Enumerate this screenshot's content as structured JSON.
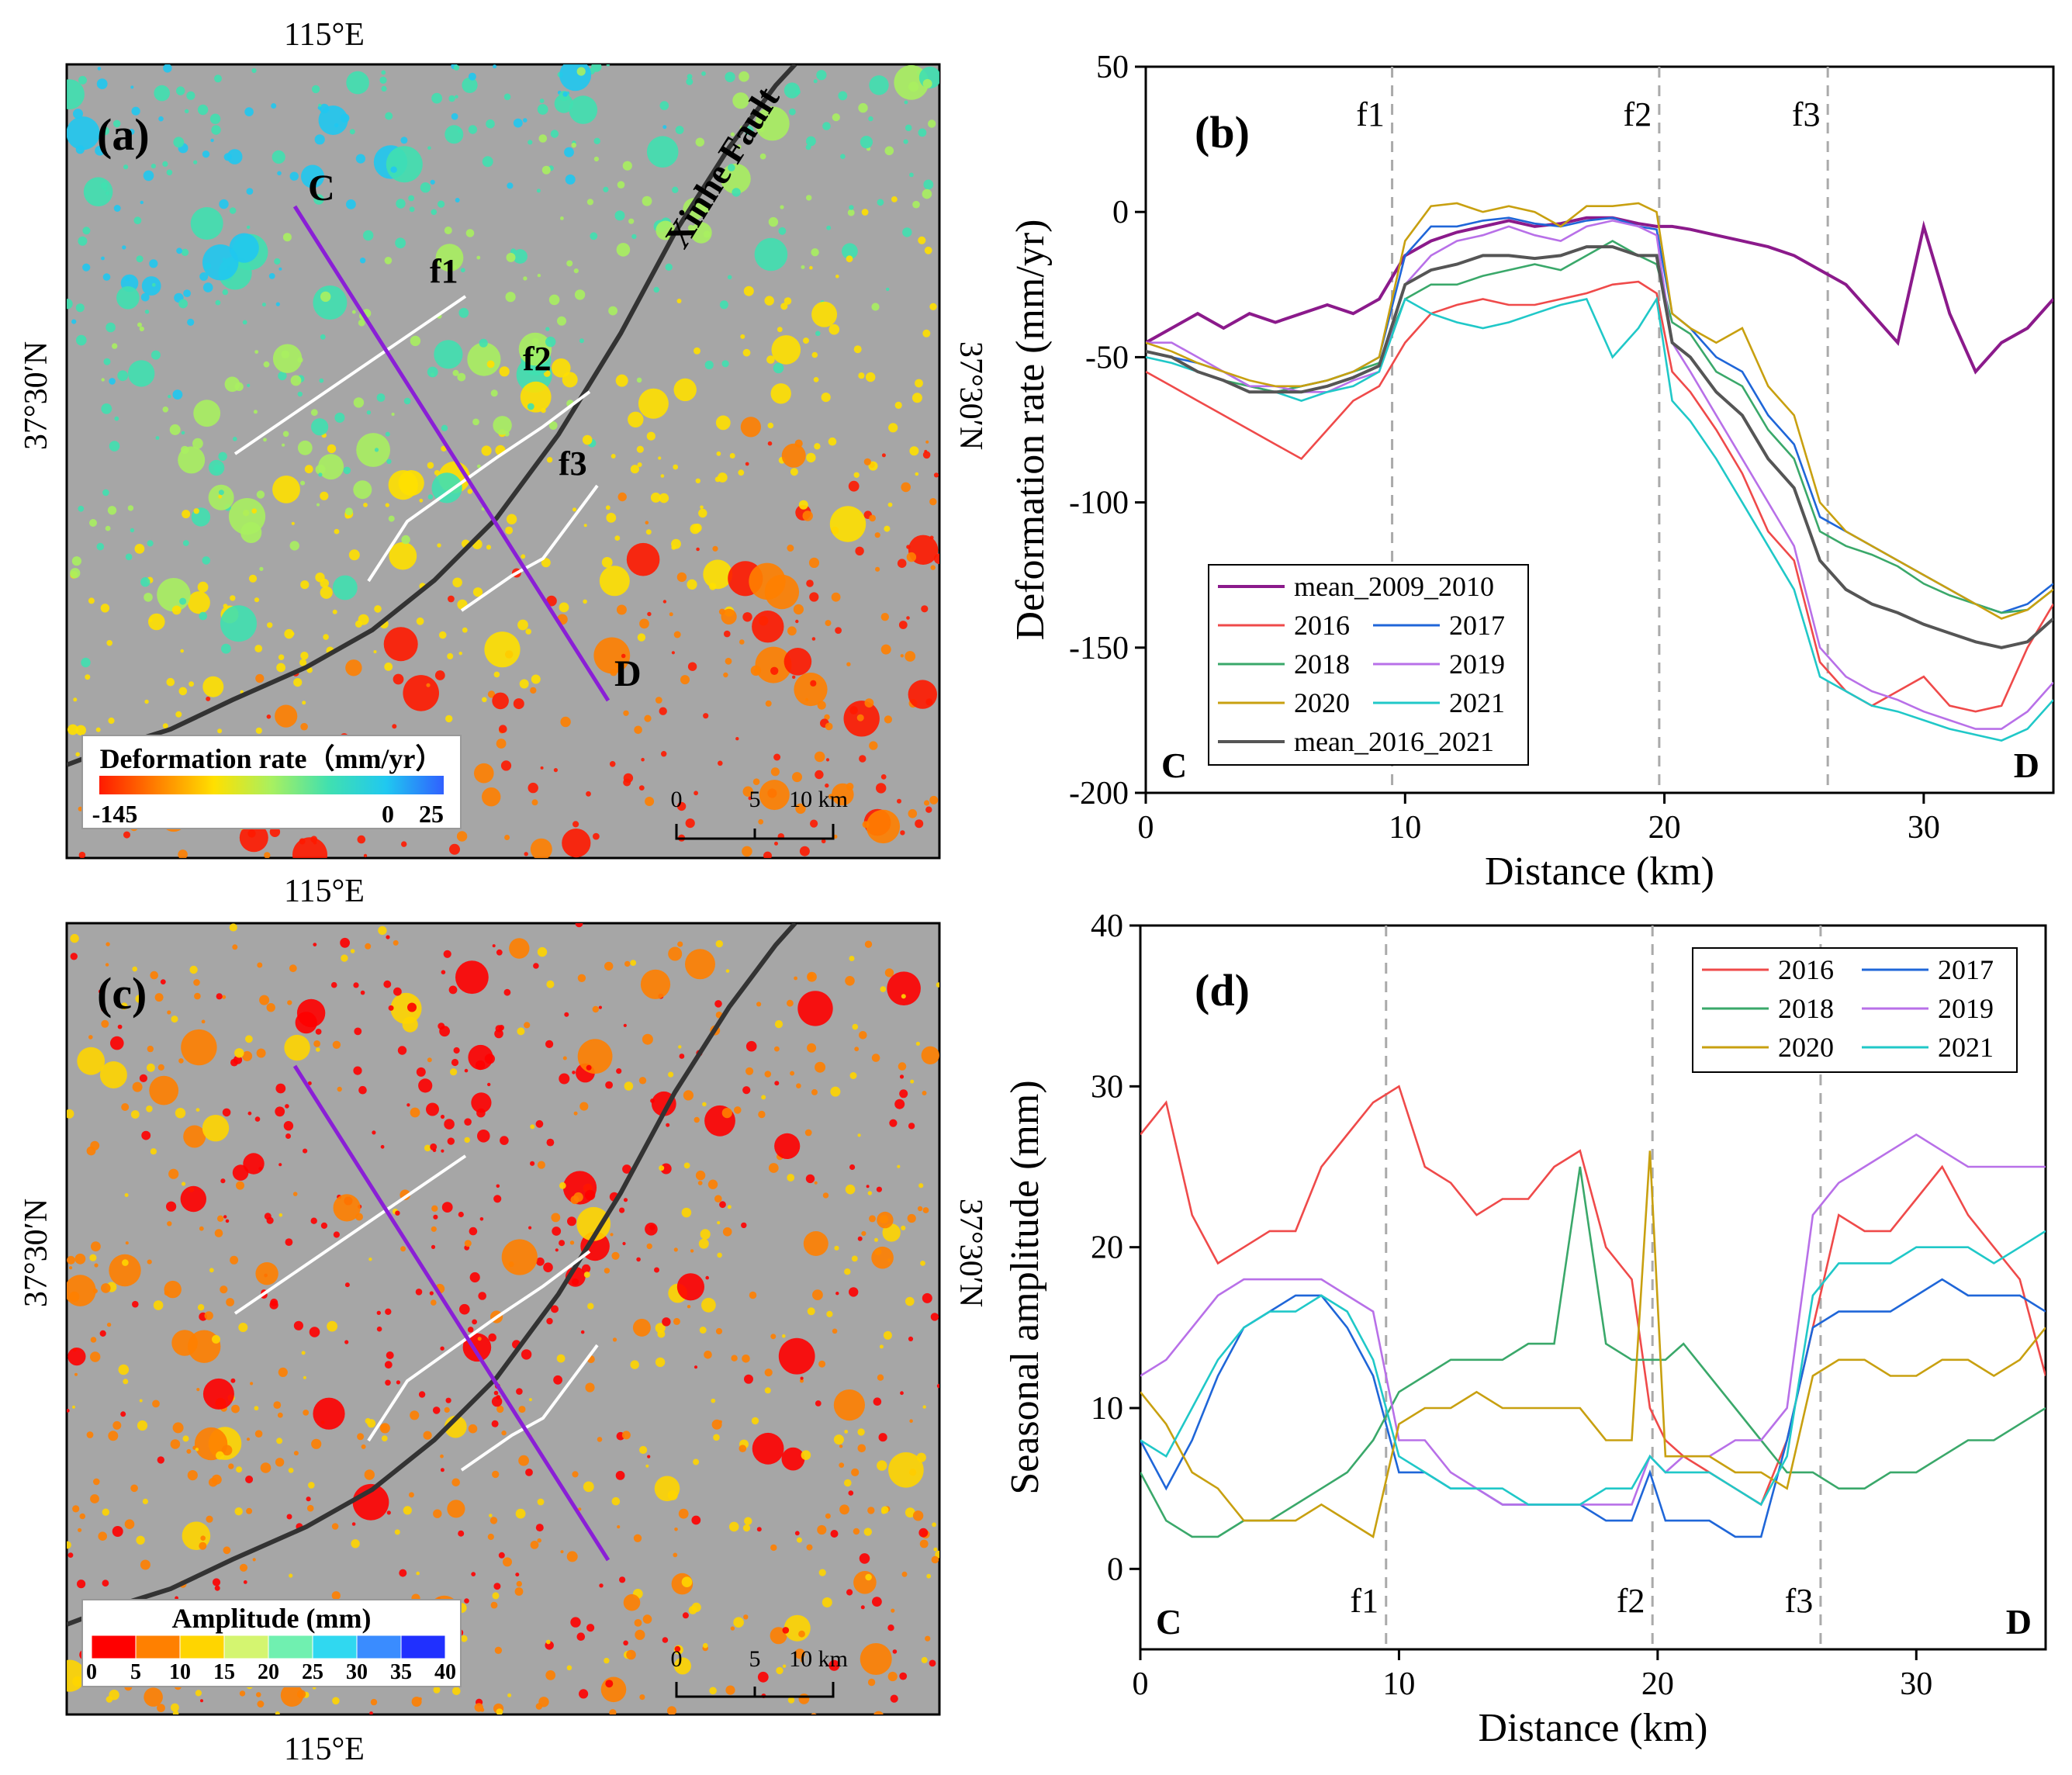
{
  "panel_labels": {
    "a": "(a)",
    "b": "(b)",
    "c": "(c)",
    "d": "(d)"
  },
  "map_common": {
    "lon_label": "115°E",
    "lat_label": "37°30′N",
    "profile_start": "C",
    "profile_end": "D",
    "faults": [
      "f1",
      "f2",
      "f3"
    ],
    "xinhe_fault": "Xinhe Fault",
    "scale_ticks": [
      "0",
      "5",
      "10 km"
    ],
    "profile_color": "#8a1fd6",
    "fault_color": "#333333"
  },
  "map_a": {
    "legend_title": "Deformation rate（mm/yr）",
    "legend_ticks": [
      "-145",
      "0",
      "25"
    ],
    "colors": [
      "#ff1a00",
      "#ff8000",
      "#ffe000",
      "#a8f060",
      "#40e0b0",
      "#20c8f0",
      "#3060ff"
    ]
  },
  "map_c": {
    "legend_title": "Amplitude (mm)",
    "legend_ticks": [
      "0",
      "5",
      "10",
      "15",
      "20",
      "25",
      "30",
      "35",
      "40"
    ],
    "colors": [
      "#ff0000",
      "#ff8000",
      "#ffd500",
      "#d4f570",
      "#70f0b0",
      "#30d8f0",
      "#3a8cff",
      "#2030ff"
    ]
  },
  "colors": {
    "mean_2009_2010": "#8b1a8b",
    "2016": "#ef4a4a",
    "2017": "#1f66d8",
    "2018": "#3aa86a",
    "2019": "#b870e8",
    "2020": "#c8a010",
    "2021": "#20c8c8",
    "mean_2016_2021": "#555555"
  },
  "chart_data": [
    {
      "type": "line",
      "panel": "(b)",
      "xlabel": "Distance (km)",
      "ylabel": "Deformation rate (mm/yr)",
      "xlim": [
        0,
        35
      ],
      "ylim": [
        -200,
        50
      ],
      "xticks": [
        "0",
        "10",
        "20",
        "30"
      ],
      "yticks": [
        "-200",
        "-150",
        "-100",
        "-50",
        "0",
        "50"
      ],
      "vlines": [
        {
          "x": 9.5,
          "label": "f1"
        },
        {
          "x": 19.8,
          "label": "f2"
        },
        {
          "x": 26.3,
          "label": "f3"
        }
      ],
      "corner_labels": {
        "left": "C",
        "right": "D"
      },
      "legend": "lower-left",
      "x": [
        0,
        1,
        2,
        3,
        4,
        5,
        6,
        7,
        8,
        9,
        10,
        11,
        12,
        13,
        14,
        15,
        16,
        17,
        18,
        19,
        19.7,
        20.3,
        21,
        22,
        23,
        24,
        25,
        26,
        27,
        28,
        29,
        30,
        31,
        32,
        33,
        34,
        35
      ],
      "series": [
        {
          "name": "mean_2009_2010",
          "values": [
            -45,
            -40,
            -35,
            -40,
            -35,
            -38,
            -35,
            -32,
            -35,
            -30,
            -15,
            -10,
            -7,
            -5,
            -3,
            -5,
            -4,
            -2,
            -2,
            -4,
            -5,
            -5,
            -6,
            -8,
            -10,
            -12,
            -15,
            -20,
            -25,
            -35,
            -45,
            -5,
            -35,
            -55,
            -45,
            -40,
            -30
          ]
        },
        {
          "name": "2016",
          "values": [
            -55,
            -60,
            -65,
            -70,
            -75,
            -80,
            -85,
            -75,
            -65,
            -60,
            -45,
            -35,
            -32,
            -30,
            -32,
            -32,
            -30,
            -28,
            -25,
            -24,
            -28,
            -55,
            -62,
            -75,
            -90,
            -110,
            -120,
            -155,
            -165,
            -170,
            -165,
            -160,
            -170,
            -172,
            -170,
            -150,
            -135
          ]
        },
        {
          "name": "2017",
          "values": [
            -48,
            -50,
            -52,
            -55,
            -60,
            -62,
            -60,
            -58,
            -55,
            -50,
            -15,
            -5,
            -5,
            -3,
            -2,
            -4,
            -5,
            -3,
            -2,
            -5,
            -6,
            -35,
            -40,
            -50,
            -55,
            -70,
            -80,
            -105,
            -110,
            -115,
            -120,
            -125,
            -130,
            -135,
            -138,
            -135,
            -128
          ]
        },
        {
          "name": "2018",
          "values": [
            -48,
            -50,
            -55,
            -58,
            -60,
            -62,
            -60,
            -58,
            -55,
            -52,
            -30,
            -25,
            -25,
            -22,
            -20,
            -18,
            -20,
            -15,
            -10,
            -15,
            -18,
            -38,
            -42,
            -55,
            -60,
            -75,
            -85,
            -110,
            -115,
            -118,
            -122,
            -128,
            -132,
            -135,
            -138,
            -137,
            -130
          ]
        },
        {
          "name": "2019",
          "values": [
            -45,
            -45,
            -50,
            -55,
            -60,
            -60,
            -62,
            -62,
            -58,
            -55,
            -25,
            -15,
            -10,
            -8,
            -5,
            -8,
            -10,
            -5,
            -3,
            -5,
            -8,
            -45,
            -55,
            -70,
            -85,
            -100,
            -115,
            -150,
            -160,
            -165,
            -168,
            -172,
            -175,
            -178,
            -178,
            -172,
            -162
          ]
        },
        {
          "name": "2020",
          "values": [
            -45,
            -48,
            -52,
            -55,
            -58,
            -60,
            -60,
            -58,
            -55,
            -50,
            -10,
            2,
            3,
            0,
            2,
            0,
            -5,
            2,
            2,
            3,
            0,
            -35,
            -40,
            -45,
            -40,
            -60,
            -70,
            -100,
            -110,
            -115,
            -120,
            -125,
            -130,
            -135,
            -140,
            -137,
            -130
          ]
        },
        {
          "name": "2021",
          "values": [
            -50,
            -52,
            -55,
            -58,
            -62,
            -62,
            -65,
            -62,
            -60,
            -55,
            -30,
            -35,
            -38,
            -40,
            -38,
            -35,
            -32,
            -30,
            -50,
            -40,
            -30,
            -65,
            -72,
            -85,
            -100,
            -115,
            -130,
            -160,
            -165,
            -170,
            -172,
            -175,
            -178,
            -180,
            -182,
            -178,
            -168
          ]
        },
        {
          "name": "mean_2016_2021",
          "values": [
            -48,
            -50,
            -55,
            -58,
            -62,
            -62,
            -62,
            -60,
            -57,
            -53,
            -25,
            -20,
            -18,
            -15,
            -15,
            -16,
            -15,
            -12,
            -12,
            -15,
            -15,
            -45,
            -50,
            -62,
            -70,
            -85,
            -95,
            -120,
            -130,
            -135,
            -138,
            -142,
            -145,
            -148,
            -150,
            -148,
            -140
          ]
        }
      ]
    },
    {
      "type": "line",
      "panel": "(d)",
      "xlabel": "Distance (km)",
      "ylabel": "Seasonal amplitude (mm)",
      "xlim": [
        0,
        35
      ],
      "ylim": [
        -5,
        40
      ],
      "xticks": [
        "0",
        "10",
        "20",
        "30"
      ],
      "yticks": [
        "0",
        "10",
        "20",
        "30",
        "40"
      ],
      "vlines": [
        {
          "x": 9.5,
          "label": "f1"
        },
        {
          "x": 19.8,
          "label": "f2"
        },
        {
          "x": 26.3,
          "label": "f3"
        }
      ],
      "corner_labels": {
        "left": "C",
        "right": "D"
      },
      "legend": "top-right",
      "x": [
        0,
        1,
        2,
        3,
        4,
        5,
        6,
        7,
        8,
        9,
        10,
        11,
        12,
        13,
        14,
        15,
        16,
        17,
        18,
        19,
        19.7,
        20.3,
        21,
        22,
        23,
        24,
        25,
        26,
        27,
        28,
        29,
        30,
        31,
        32,
        33,
        34,
        35
      ],
      "series": [
        {
          "name": "2016",
          "values": [
            27,
            29,
            22,
            19,
            20,
            21,
            21,
            25,
            27,
            29,
            30,
            25,
            24,
            22,
            23,
            23,
            25,
            26,
            20,
            18,
            10,
            8,
            7,
            6,
            5,
            4,
            8,
            15,
            22,
            21,
            21,
            23,
            25,
            22,
            20,
            18,
            12
          ]
        },
        {
          "name": "2017",
          "values": [
            8,
            5,
            8,
            12,
            15,
            16,
            17,
            17,
            15,
            12,
            6,
            6,
            5,
            5,
            4,
            4,
            4,
            4,
            3,
            3,
            6,
            3,
            3,
            3,
            2,
            2,
            8,
            15,
            16,
            16,
            16,
            17,
            18,
            17,
            17,
            17,
            16
          ]
        },
        {
          "name": "2018",
          "values": [
            6,
            3,
            2,
            2,
            3,
            3,
            4,
            5,
            6,
            8,
            11,
            12,
            13,
            13,
            13,
            14,
            14,
            25,
            14,
            13,
            13,
            13,
            14,
            12,
            10,
            8,
            6,
            6,
            5,
            5,
            6,
            6,
            7,
            8,
            8,
            9,
            10
          ]
        },
        {
          "name": "2019",
          "values": [
            12,
            13,
            15,
            17,
            18,
            18,
            18,
            18,
            17,
            16,
            8,
            8,
            6,
            5,
            4,
            4,
            4,
            4,
            4,
            4,
            7,
            6,
            7,
            7,
            8,
            8,
            10,
            22,
            24,
            25,
            26,
            27,
            26,
            25,
            25,
            25,
            25
          ]
        },
        {
          "name": "2020",
          "values": [
            11,
            9,
            6,
            5,
            3,
            3,
            3,
            4,
            3,
            2,
            9,
            10,
            10,
            11,
            10,
            10,
            10,
            10,
            8,
            8,
            26,
            7,
            7,
            7,
            6,
            6,
            5,
            12,
            13,
            13,
            12,
            12,
            13,
            13,
            12,
            13,
            15
          ]
        },
        {
          "name": "2021",
          "values": [
            8,
            7,
            10,
            13,
            15,
            16,
            16,
            17,
            16,
            13,
            7,
            6,
            5,
            5,
            5,
            4,
            4,
            4,
            5,
            5,
            7,
            6,
            6,
            6,
            5,
            4,
            7,
            17,
            19,
            19,
            19,
            20,
            20,
            20,
            19,
            20,
            21
          ]
        }
      ]
    }
  ]
}
